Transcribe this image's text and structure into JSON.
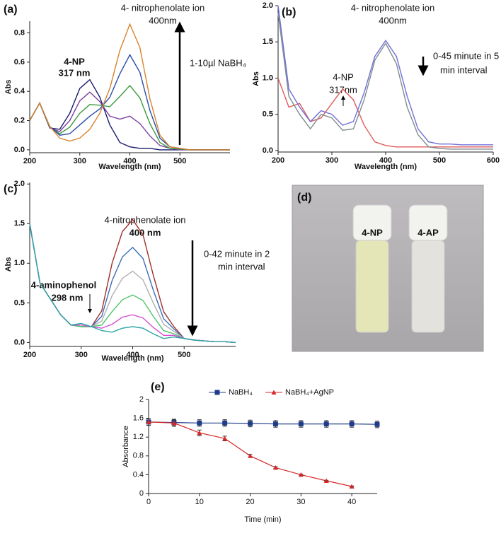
{
  "chart_data": [
    {
      "type": "line",
      "label": "(a)",
      "x_label": "Wavelength (nm)",
      "y_label": "Abs",
      "annotations": [
        "4- nitrophenolate ion",
        "400nm",
        "4-NP",
        "317 nm",
        "1-10µl NaBH₄"
      ],
      "x": [
        200,
        220,
        240,
        260,
        280,
        300,
        320,
        340,
        360,
        380,
        400,
        420,
        440,
        460,
        480,
        500,
        520,
        540,
        560,
        580,
        600
      ],
      "series": [
        {
          "color": "#1a1a6e",
          "values": [
            0.2,
            0.32,
            0.15,
            0.14,
            0.25,
            0.42,
            0.48,
            0.36,
            0.17,
            0.05,
            0.02,
            0.01,
            0.01,
            0,
            0,
            0,
            0,
            0,
            0,
            0,
            0
          ]
        },
        {
          "color": "#7b3fa0",
          "values": [
            0.2,
            0.32,
            0.15,
            0.125,
            0.2,
            0.335,
            0.395,
            0.33,
            0.23,
            0.21,
            0.23,
            0.18,
            0.095,
            0.03,
            0.01,
            0,
            0,
            0,
            0,
            0,
            0
          ]
        },
        {
          "color": "#3a9a3a",
          "values": [
            0.2,
            0.32,
            0.155,
            0.11,
            0.155,
            0.25,
            0.31,
            0.305,
            0.295,
            0.365,
            0.44,
            0.355,
            0.18,
            0.05,
            0.01,
            0.005,
            0,
            0,
            0,
            0,
            0
          ]
        },
        {
          "color": "#2a4fa8",
          "values": [
            0.2,
            0.32,
            0.16,
            0.1,
            0.11,
            0.17,
            0.23,
            0.28,
            0.36,
            0.52,
            0.65,
            0.53,
            0.27,
            0.08,
            0.02,
            0.01,
            0,
            0,
            0,
            0,
            0
          ]
        },
        {
          "color": "#d9822b",
          "values": [
            0.2,
            0.32,
            0.16,
            0.08,
            0.06,
            0.08,
            0.14,
            0.25,
            0.42,
            0.68,
            0.86,
            0.7,
            0.35,
            0.1,
            0.02,
            0.01,
            0,
            0,
            0,
            0,
            0
          ]
        }
      ],
      "xlim": [
        200,
        600
      ],
      "ylim": [
        -0.02,
        0.88
      ],
      "xticks": [
        200,
        300,
        400,
        500
      ],
      "yticks": [
        {
          "value": 0,
          "label": "0.0"
        },
        0.2,
        0.4,
        0.6,
        0.8
      ]
    },
    {
      "type": "line",
      "label": "(b)",
      "x_label": "Wavelength (nm)",
      "y_label": "Abs",
      "annotations": [
        "4- nitrophenolate ion",
        "400nm",
        "0-45 minute in 5",
        "min interval",
        "4-NP",
        "317nm"
      ],
      "x": [
        200,
        220,
        240,
        260,
        280,
        300,
        320,
        340,
        360,
        380,
        400,
        420,
        440,
        460,
        480,
        500,
        520,
        540,
        560,
        580,
        600
      ],
      "series": [
        {
          "color": "#e05a5a",
          "values": [
            1.0,
            0.6,
            0.65,
            0.4,
            0.45,
            0.65,
            0.85,
            0.7,
            0.35,
            0.12,
            0.07,
            0.05,
            0.05,
            0.05,
            0.05,
            0.05,
            0.05,
            0.05,
            0.05,
            0.05,
            0.05
          ]
        },
        {
          "color": "#7f8c8d",
          "values": [
            1.9,
            0.75,
            0.5,
            0.3,
            0.5,
            0.45,
            0.28,
            0.3,
            0.7,
            1.25,
            1.48,
            1.2,
            0.6,
            0.22,
            0.05,
            0.03,
            0.02,
            0.02,
            0.02,
            0.02,
            0.02
          ]
        },
        {
          "color": "#6f6fd8",
          "values": [
            2.0,
            0.85,
            0.6,
            0.4,
            0.55,
            0.5,
            0.35,
            0.4,
            0.8,
            1.3,
            1.52,
            1.3,
            0.75,
            0.3,
            0.12,
            0.09,
            0.09,
            0.08,
            0.08,
            0.08,
            0.08
          ]
        }
      ],
      "xlim": [
        200,
        600
      ],
      "ylim": [
        -0.02,
        2.0
      ],
      "xticks": [
        200,
        300,
        400,
        500,
        600
      ],
      "yticks": [
        {
          "value": 0,
          "label": "0.0"
        },
        0.5,
        {
          "value": 1,
          "label": "1.0"
        },
        1.5,
        {
          "value": 2,
          "label": "2.0"
        }
      ]
    },
    {
      "type": "line",
      "label": "(c)",
      "x_label": "Wavelength (nm)",
      "y_label": "Abs",
      "annotations": [
        "4-nitrophenolate ion",
        "400 nm",
        "0-42 minute in 2",
        "min interval",
        "4-aminophenol",
        "298 nm"
      ],
      "x": [
        200,
        220,
        240,
        260,
        280,
        300,
        320,
        340,
        360,
        380,
        400,
        420,
        440,
        460,
        480,
        500,
        520,
        540,
        560,
        580,
        600
      ],
      "series": [
        {
          "color": "#a0302a",
          "values": [
            1.5,
            0.75,
            0.55,
            0.35,
            0.22,
            0.2,
            0.2,
            0.4,
            1.0,
            1.4,
            1.55,
            1.36,
            0.85,
            0.39,
            0.2,
            0.05,
            0.03,
            0.02,
            0.01,
            0.01,
            0
          ]
        },
        {
          "color": "#3b6fb6",
          "values": [
            1.5,
            0.75,
            0.55,
            0.35,
            0.22,
            0.2,
            0.2,
            0.33,
            0.78,
            1.08,
            1.2,
            1.06,
            0.66,
            0.3,
            0.17,
            0.05,
            0.03,
            0.02,
            0.01,
            0.01,
            0
          ]
        },
        {
          "color": "#b0b0b0",
          "values": [
            1.5,
            0.75,
            0.55,
            0.35,
            0.22,
            0.2,
            0.2,
            0.27,
            0.59,
            0.81,
            0.9,
            0.79,
            0.5,
            0.23,
            0.14,
            0.05,
            0.03,
            0.02,
            0.01,
            0.01,
            0
          ]
        },
        {
          "color": "#4cc46a",
          "values": [
            1.5,
            0.75,
            0.55,
            0.35,
            0.22,
            0.2,
            0.2,
            0.22,
            0.39,
            0.54,
            0.6,
            0.53,
            0.33,
            0.15,
            0.11,
            0.05,
            0.03,
            0.02,
            0.01,
            0.01,
            0
          ]
        },
        {
          "color": "#d64fd6",
          "values": [
            1.5,
            0.75,
            0.55,
            0.35,
            0.22,
            0.22,
            0.2,
            0.18,
            0.23,
            0.32,
            0.35,
            0.31,
            0.19,
            0.09,
            0.09,
            0.05,
            0.03,
            0.02,
            0.01,
            0.01,
            0
          ]
        },
        {
          "color": "#2aa6a6",
          "values": [
            1.5,
            0.75,
            0.55,
            0.35,
            0.22,
            0.24,
            0.2,
            0.15,
            0.13,
            0.18,
            0.2,
            0.18,
            0.11,
            0.05,
            0.07,
            0.05,
            0.03,
            0.02,
            0.01,
            0.01,
            0
          ]
        }
      ],
      "xlim": [
        200,
        600
      ],
      "ylim": [
        -0.05,
        2.02
      ],
      "xticks": [
        200,
        300,
        400,
        500
      ],
      "yticks": [
        {
          "value": 0,
          "label": "0.0"
        },
        0.5,
        {
          "value": 1,
          "label": "1.0"
        },
        1.5,
        {
          "value": 2,
          "label": "2.0"
        }
      ]
    },
    {
      "type": "line",
      "label": "(e)",
      "x_label": "Time (min)",
      "y_label": "Absorbance",
      "x": [
        0,
        5,
        10,
        15,
        20,
        25,
        30,
        35,
        40,
        45
      ],
      "series": [
        {
          "name": "NaBH₄",
          "color": "#1f3c88",
          "marker": "square",
          "values": [
            1.52,
            1.51,
            1.5,
            1.5,
            1.49,
            1.48,
            1.48,
            1.48,
            1.48,
            1.47
          ],
          "errors": [
            0.07,
            0.07,
            0.07,
            0.07,
            0.07,
            0.07,
            0.07,
            0.07,
            0.07,
            0.07
          ]
        },
        {
          "name": "NaBH₄+AgNP",
          "color": "#d62728",
          "marker": "triangle",
          "values": [
            1.52,
            1.5,
            1.29,
            1.17,
            0.8,
            0.55,
            0.4,
            0.27,
            0.15,
            null
          ],
          "errors": [
            0.07,
            0.07,
            0.06,
            0.05,
            0.03,
            0.02,
            0.01,
            0.01,
            0.01,
            null
          ]
        }
      ],
      "xlim": [
        0,
        45
      ],
      "ylim": [
        0,
        2
      ],
      "xticks": [
        0,
        10,
        20,
        30,
        40
      ],
      "yticks": [
        0,
        0.4,
        0.8,
        1.2,
        1.6,
        2
      ],
      "legend": "top"
    }
  ],
  "photo": {
    "label": "(d)",
    "vials": [
      "4-NP",
      "4-AP"
    ]
  }
}
